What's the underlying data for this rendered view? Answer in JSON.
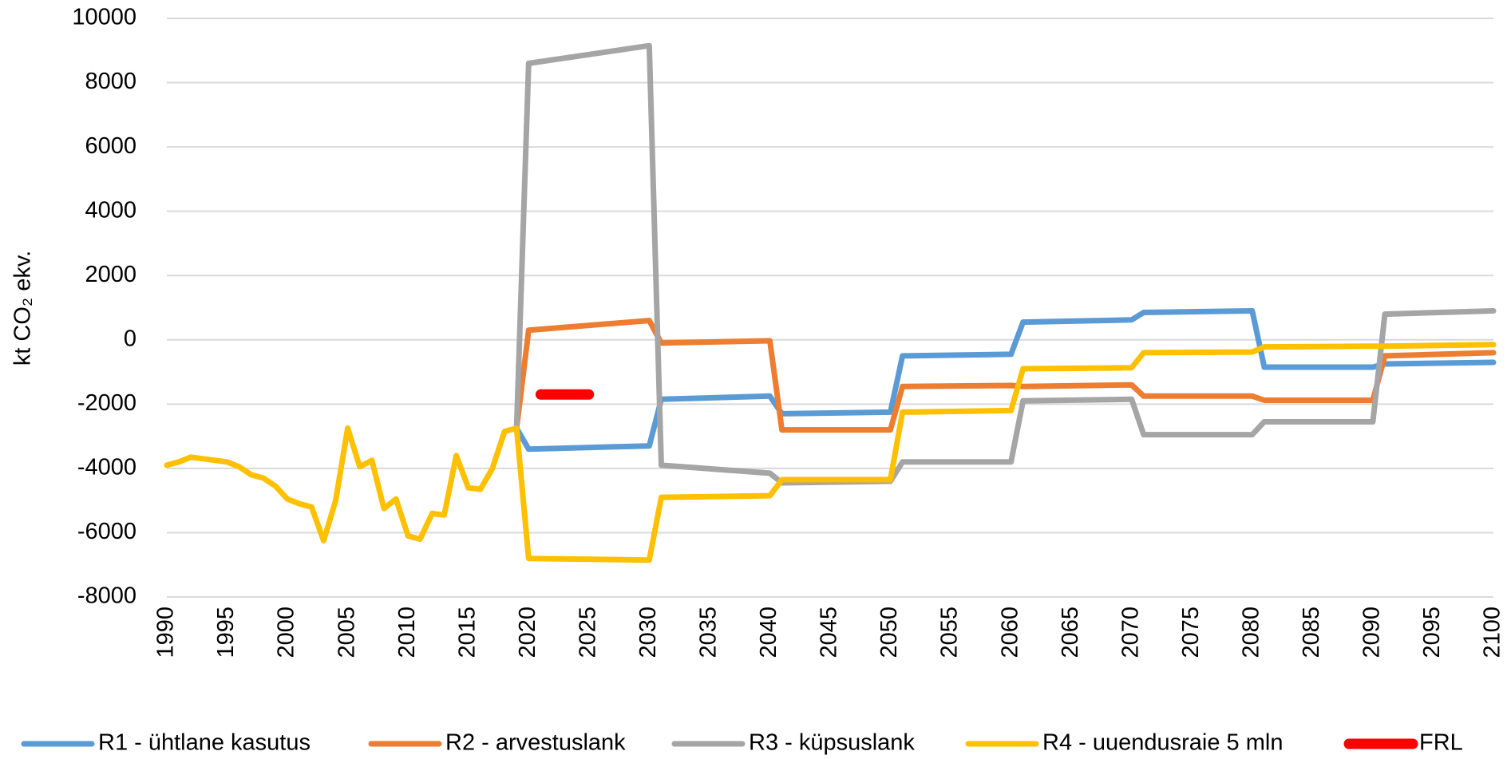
{
  "chart_data": {
    "type": "line",
    "y_label": "kt CO₂ ekv.",
    "xlim": [
      1990,
      2100
    ],
    "xticks": [
      1990,
      1995,
      2000,
      2005,
      2010,
      2015,
      2020,
      2025,
      2030,
      2035,
      2040,
      2045,
      2050,
      2055,
      2060,
      2065,
      2070,
      2075,
      2080,
      2085,
      2090,
      2095,
      2100
    ],
    "ylim": [
      -8000,
      10000
    ],
    "yticks": [
      -8000,
      -6000,
      -4000,
      -2000,
      0,
      2000,
      4000,
      6000,
      8000,
      10000
    ],
    "grid": true,
    "legend": "bottom",
    "series": [
      {
        "name": "R1 - ühtlane kasutus",
        "color": "#5b9bd5",
        "x": [
          2019,
          2020,
          2030,
          2031,
          2040,
          2041,
          2050,
          2051,
          2060,
          2061,
          2070,
          2071,
          2080,
          2081,
          2090,
          2091,
          2100
        ],
        "values": [
          -2750,
          -3400,
          -3300,
          -1850,
          -1750,
          -2300,
          -2250,
          -500,
          -450,
          550,
          620,
          850,
          900,
          -850,
          -850,
          -750,
          -700
        ]
      },
      {
        "name": "R2 - arvestuslank",
        "color": "#ed7d31",
        "x": [
          2019,
          2020,
          2030,
          2031,
          2040,
          2041,
          2050,
          2051,
          2060,
          2061,
          2070,
          2071,
          2080,
          2081,
          2090,
          2091,
          2100
        ],
        "values": [
          -2750,
          300,
          600,
          -100,
          -30,
          -2800,
          -2800,
          -1450,
          -1420,
          -1450,
          -1400,
          -1750,
          -1750,
          -1880,
          -1880,
          -500,
          -400
        ]
      },
      {
        "name": "R3 - küpsuslank",
        "color": "#a5a5a5",
        "x": [
          2019,
          2020,
          2030,
          2031,
          2040,
          2041,
          2050,
          2051,
          2060,
          2061,
          2070,
          2071,
          2080,
          2081,
          2090,
          2091,
          2100
        ],
        "values": [
          -2750,
          8600,
          9150,
          -3900,
          -4150,
          -4450,
          -4400,
          -3800,
          -3800,
          -1900,
          -1850,
          -2950,
          -2950,
          -2550,
          -2550,
          800,
          900
        ]
      },
      {
        "name": "R4 - uuendusraie 5 mln",
        "color": "#ffc000",
        "x": [
          1990,
          1991,
          1992,
          1993,
          1994,
          1995,
          1996,
          1997,
          1998,
          1999,
          2000,
          2001,
          2002,
          2003,
          2004,
          2005,
          2006,
          2007,
          2008,
          2009,
          2010,
          2011,
          2012,
          2013,
          2014,
          2015,
          2016,
          2017,
          2018,
          2019,
          2020,
          2030,
          2031,
          2040,
          2041,
          2050,
          2051,
          2060,
          2061,
          2070,
          2071,
          2080,
          2081,
          2090,
          2091,
          2100
        ],
        "values": [
          -3900,
          -3800,
          -3650,
          -3700,
          -3750,
          -3800,
          -3950,
          -4200,
          -4300,
          -4550,
          -4950,
          -5100,
          -5200,
          -6250,
          -5000,
          -2750,
          -3950,
          -3750,
          -5250,
          -4950,
          -6100,
          -6200,
          -5400,
          -5450,
          -3600,
          -4600,
          -4650,
          -4000,
          -2850,
          -2750,
          -6800,
          -6850,
          -4900,
          -4850,
          -4350,
          -4350,
          -2250,
          -2200,
          -900,
          -870,
          -400,
          -380,
          -220,
          -200,
          -200,
          -150
        ]
      },
      {
        "name": "FRL",
        "color": "#ff0000",
        "x": [
          2021,
          2025
        ],
        "values": [
          -1700,
          -1700
        ]
      }
    ]
  }
}
